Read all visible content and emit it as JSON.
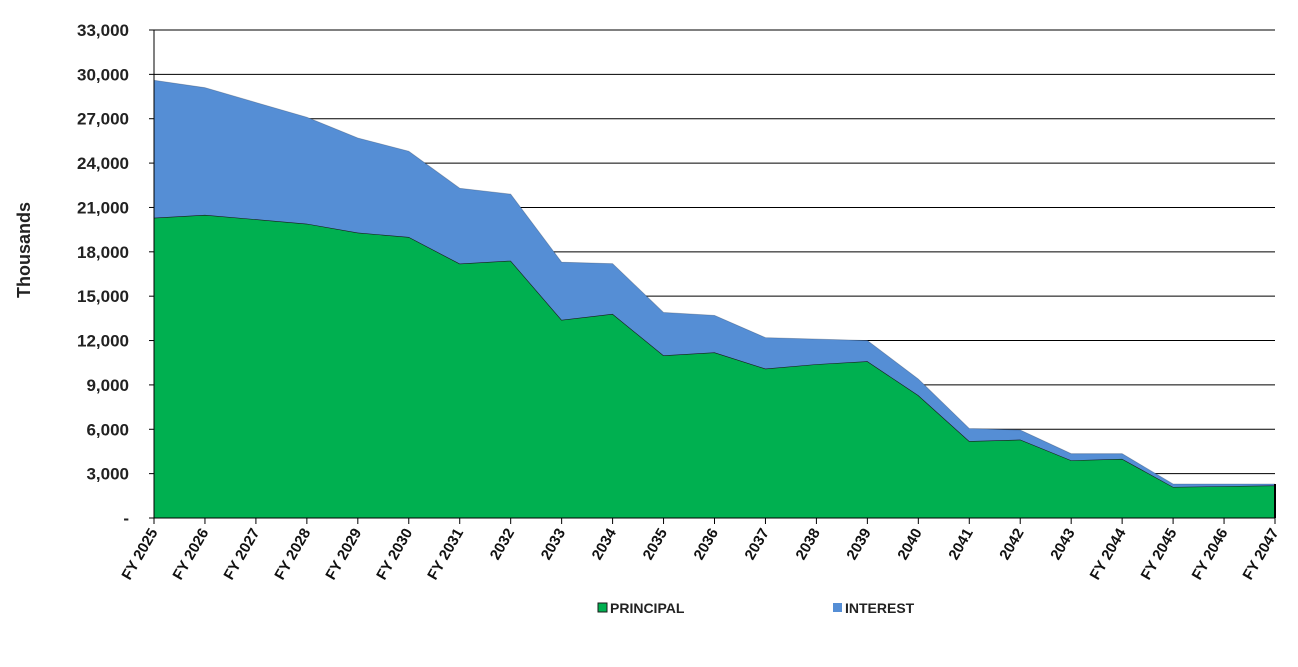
{
  "chart_data": {
    "type": "area",
    "stacked": true,
    "ylabel": "Thousands",
    "xlabel": "",
    "ylim": [
      0,
      33000
    ],
    "yticks": [
      0,
      3000,
      6000,
      9000,
      12000,
      15000,
      18000,
      21000,
      24000,
      27000,
      30000,
      33000
    ],
    "ytick_labels": [
      "-",
      "3,000",
      "6,000",
      "9,000",
      "12,000",
      "15,000",
      "18,000",
      "21,000",
      "24,000",
      "27,000",
      "30,000",
      "33,000"
    ],
    "grid": true,
    "legend_position": "bottom",
    "categories": [
      "FY 2025",
      "FY 2026",
      "FY 2027",
      "FY 2028",
      "FY 2029",
      "FY 2030",
      "FY 2031",
      "FY 2032",
      "FY 2033",
      "FY 2034",
      "FY 2035",
      "FY 2036",
      "FY 2037",
      "FY 2038",
      "FY 2039",
      "FY 2040",
      "FY 2041",
      "FY 2042",
      "FY 2043",
      "FY 2044",
      "FY 2045",
      "FY 2046",
      "FY 2047"
    ],
    "category_labels": [
      "FY 2025",
      "FY 2026",
      "FY 2027",
      "FY 2028",
      "FY 2029",
      "FY 2030",
      "FY 2031",
      "2032",
      "2033",
      "2034",
      "2035",
      "2036",
      "2037",
      "2038",
      "2039",
      "2040",
      "2041",
      "2042",
      "2043",
      "FY 2044",
      "FY 2045",
      "FY 2046",
      "FY 2047"
    ],
    "series": [
      {
        "name": "PRINCIPAL",
        "color": "#00B050",
        "values": [
          20300,
          20500,
          20200,
          19900,
          19300,
          19000,
          17200,
          17400,
          13400,
          13800,
          11000,
          11200,
          10100,
          10400,
          10600,
          8300,
          5200,
          5300,
          3900,
          4000,
          2100,
          2150,
          2200
        ]
      },
      {
        "name": "INTEREST",
        "color": "#558ED5",
        "values": [
          9300,
          8600,
          7900,
          7200,
          6400,
          5800,
          5100,
          4500,
          3900,
          3400,
          2900,
          2500,
          2100,
          1700,
          1400,
          1100,
          850,
          650,
          450,
          350,
          200,
          150,
          100
        ]
      }
    ]
  }
}
